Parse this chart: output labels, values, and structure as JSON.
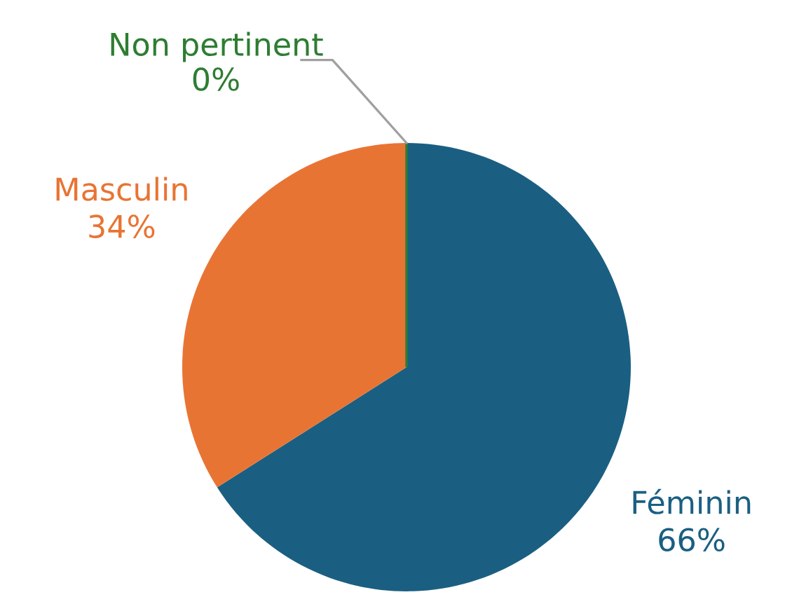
{
  "chart_data": {
    "type": "pie",
    "categories": [
      "Féminin",
      "Masculin",
      "Non pertinent"
    ],
    "values": [
      66,
      34,
      0
    ],
    "value_labels": [
      "66%",
      "34%",
      "0%"
    ],
    "colors": [
      "#1a5f82",
      "#e87434",
      "#2e7d32"
    ]
  }
}
